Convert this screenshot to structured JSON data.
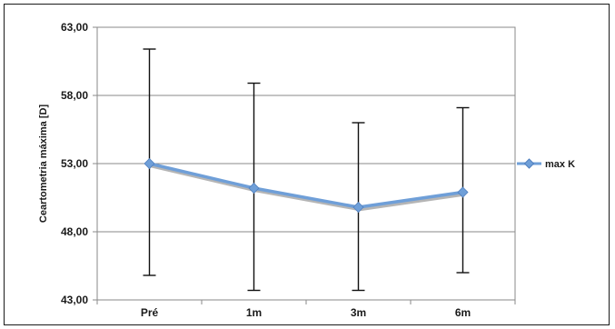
{
  "chart_data": {
    "type": "line",
    "title": "",
    "xlabel": "",
    "ylabel": "Ceartometria máxima [D]",
    "categories": [
      "Pré",
      "1m",
      "3m",
      "6m"
    ],
    "series": [
      {
        "name": "max K",
        "values": [
          53.0,
          51.2,
          49.8,
          50.9
        ],
        "error_low": [
          44.8,
          43.7,
          43.7,
          45.0
        ],
        "error_high": [
          61.4,
          58.9,
          56.0,
          57.1
        ]
      }
    ],
    "ylim": [
      43,
      63
    ],
    "yticks": [
      "43,00",
      "48,00",
      "53,00",
      "58,00",
      "63,00"
    ],
    "ytick_values": [
      43,
      48,
      53,
      58,
      63
    ],
    "grid": true,
    "legend_position": "right",
    "colors": {
      "series": "#6f9fd8",
      "shadow": "#b5b5b5",
      "grid": "#8a8a8a",
      "error": "#111111"
    }
  }
}
